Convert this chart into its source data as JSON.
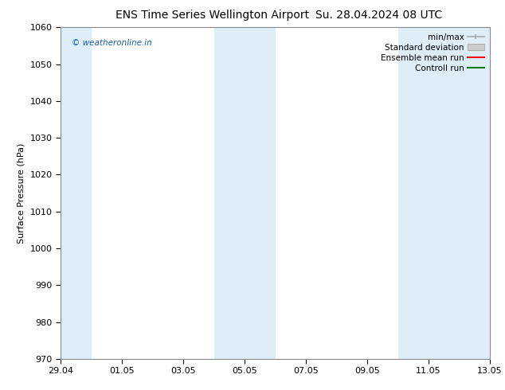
{
  "title_left": "ENS Time Series Wellington Airport",
  "title_right": "Su. 28.04.2024 08 UTC",
  "ylabel": "Surface Pressure (hPa)",
  "ylim": [
    970,
    1060
  ],
  "yticks": [
    970,
    980,
    990,
    1000,
    1010,
    1020,
    1030,
    1040,
    1050,
    1060
  ],
  "x_min": 0,
  "x_max": 14,
  "xtick_labels": [
    "29.04",
    "01.05",
    "03.05",
    "05.05",
    "07.05",
    "09.05",
    "11.05",
    "13.05"
  ],
  "xtick_positions": [
    0,
    2,
    4,
    6,
    8,
    10,
    12,
    14
  ],
  "shaded_bands": [
    {
      "start": 0,
      "end": 1,
      "color": "#ddeef8"
    },
    {
      "start": 5,
      "end": 7,
      "color": "#ddeef8"
    },
    {
      "start": 11,
      "end": 14,
      "color": "#ddeef8"
    }
  ],
  "background_color": "#ffffff",
  "plot_bg_color": "#ffffff",
  "watermark_text": "© weatheronline.in",
  "watermark_color": "#1a5fa8",
  "legend_items": [
    {
      "label": "min/max",
      "color": "#aaaaaa",
      "style": "line_with_caps"
    },
    {
      "label": "Standard deviation",
      "color": "#cccccc",
      "style": "filled_rect"
    },
    {
      "label": "Ensemble mean run",
      "color": "#ff0000",
      "style": "line"
    },
    {
      "label": "Controll run",
      "color": "#008000",
      "style": "line"
    }
  ],
  "title_fontsize": 10,
  "axis_label_fontsize": 8,
  "tick_fontsize": 8,
  "legend_fontsize": 7.5,
  "spine_color": "#888888"
}
